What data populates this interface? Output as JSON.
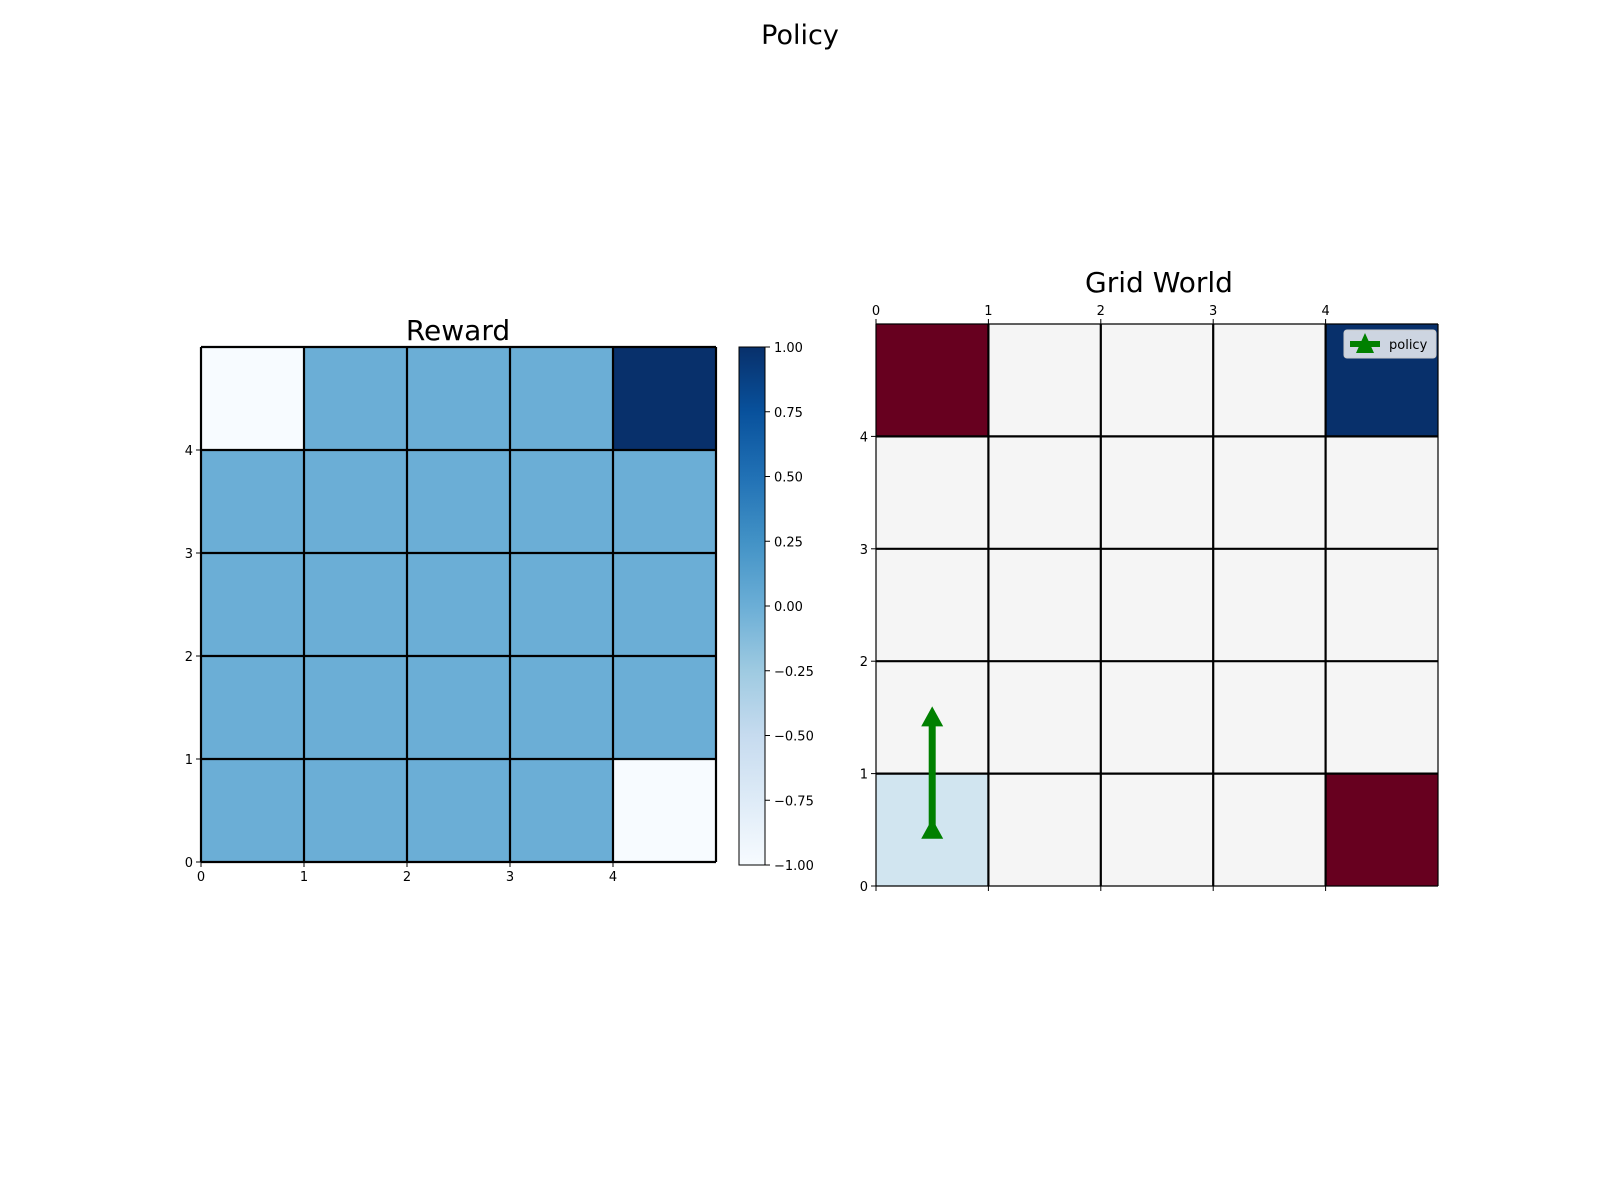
{
  "figure": {
    "title": "Policy"
  },
  "chart_data": [
    {
      "type": "heatmap",
      "title": "Reward",
      "colormap": "Blues",
      "value_range": [
        -1.0,
        1.0
      ],
      "x_ticks": [
        "0",
        "1",
        "2",
        "3",
        "4"
      ],
      "y_ticks": [
        "0",
        "1",
        "2",
        "3",
        "4"
      ],
      "grid": true,
      "rows_top_to_bottom": [
        [
          -1,
          0,
          0,
          0,
          1
        ],
        [
          0,
          0,
          0,
          0,
          0
        ],
        [
          0,
          0,
          0,
          0,
          0
        ],
        [
          0,
          0,
          0,
          0,
          0
        ],
        [
          0,
          0,
          0,
          0,
          -1
        ]
      ],
      "colorbar": {
        "ticks": [
          "1.00",
          "0.75",
          "0.50",
          "0.25",
          "0.00",
          "−0.25",
          "−0.50",
          "−0.75",
          "−1.00"
        ],
        "tick_values": [
          1.0,
          0.75,
          0.5,
          0.25,
          0.0,
          -0.25,
          -0.5,
          -0.75,
          -1.0
        ]
      }
    },
    {
      "type": "heatmap",
      "title": "Grid World",
      "x_ticks": [
        "0",
        "1",
        "2",
        "3",
        "4"
      ],
      "y_ticks": [
        "0",
        "1",
        "2",
        "3",
        "4"
      ],
      "x_axis_position": "top",
      "grid": true,
      "colors": {
        "empty": "#f5f5f5",
        "goal": "#08306b",
        "hazard": "#67001f",
        "start": "#d1e5f0",
        "policy": "#008000"
      },
      "rows_top_to_bottom": [
        [
          "hazard",
          "empty",
          "empty",
          "empty",
          "goal"
        ],
        [
          "empty",
          "empty",
          "empty",
          "empty",
          "empty"
        ],
        [
          "empty",
          "empty",
          "empty",
          "empty",
          "empty"
        ],
        [
          "empty",
          "empty",
          "empty",
          "empty",
          "empty"
        ],
        [
          "start",
          "empty",
          "empty",
          "empty",
          "hazard"
        ]
      ],
      "policy_arrow": {
        "x": 0.5,
        "y_from": 0.5,
        "y_to": 1.5,
        "direction": "up"
      },
      "legend": {
        "label": "policy",
        "placement": "top-right",
        "marker": "triangle-up"
      }
    }
  ]
}
